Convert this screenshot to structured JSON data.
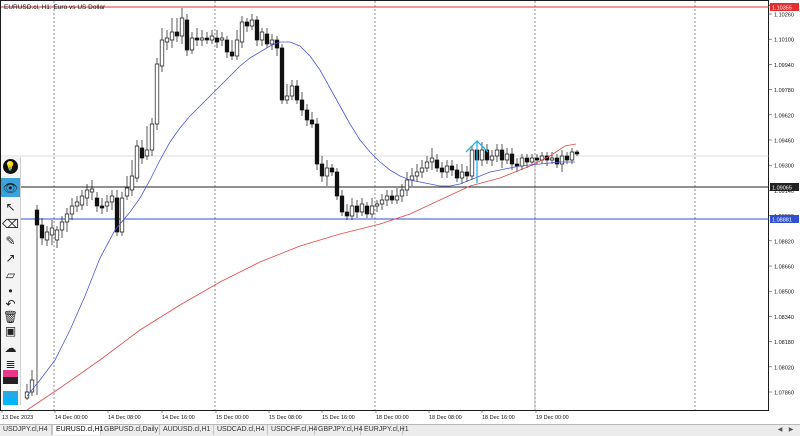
{
  "chart_header": {
    "symbol_line": "EURUSD.cl, H1:  Euro vs US Dollar"
  },
  "price_axis": {
    "labels": [
      "1.10260",
      "1.10100",
      "1.09940",
      "1.09780",
      "1.09620",
      "1.09460",
      "1.09300",
      "1.09140",
      "1.08980",
      "1.08820",
      "1.08660",
      "1.08500",
      "1.08340",
      "1.08180",
      "1.08020",
      "1.07860"
    ],
    "markers": [
      {
        "name": "top-line-marker",
        "text": "1.10355",
        "color": "#e03030"
      },
      {
        "name": "bid-price-marker",
        "text": "1.09065",
        "color": "#222222"
      },
      {
        "name": "blue-line-marker",
        "text": "1.08881",
        "color": "#3050d0"
      }
    ]
  },
  "time_axis": {
    "labels": [
      "13 Dec 2023",
      "14 Dec 00:00",
      "14 Dec 08:00",
      "14 Dec 16:00",
      "15 Dec 00:00",
      "15 Dec 08:00",
      "15 Dec 16:00",
      "18 Dec 00:00",
      "18 Dec 08:00",
      "18 Dec 16:00",
      "19 Dec 00:00"
    ]
  },
  "chart_data": {
    "type": "candlestick",
    "ylim": [
      1.0778,
      1.1038
    ],
    "horizontal_lines": [
      {
        "name": "resistance-line",
        "price": 1.10355,
        "color": "#e03030"
      },
      {
        "name": "bid-line",
        "price": 1.09065,
        "color": "#222222"
      },
      {
        "name": "support-line",
        "price": 1.08881,
        "color": "#3050d0"
      }
    ],
    "indicators": [
      {
        "name": "fast-ma",
        "color": "#4a58d8"
      },
      {
        "name": "slow-ma",
        "color": "#e04848"
      }
    ]
  },
  "toolbar": {
    "tools": [
      {
        "name": "lightbulb-icon",
        "glyph": "💡"
      },
      {
        "name": "eye-icon",
        "glyph": "👁"
      },
      {
        "name": "cursor-icon",
        "glyph": "↖"
      },
      {
        "name": "eraser-icon",
        "glyph": "⌫"
      },
      {
        "name": "pencil-icon",
        "glyph": "✎"
      },
      {
        "name": "arrow-line-icon",
        "glyph": "↗"
      },
      {
        "name": "ruler-icon",
        "glyph": "▱"
      },
      {
        "name": "dot-icon",
        "glyph": "•"
      },
      {
        "name": "undo-icon",
        "glyph": "↶"
      },
      {
        "name": "trash-icon",
        "glyph": "🗑"
      },
      {
        "name": "bus-icon",
        "glyph": "▣"
      },
      {
        "name": "cloud-icon",
        "glyph": "☁"
      },
      {
        "name": "notes-icon",
        "glyph": "≣"
      }
    ],
    "palette": [
      "#e8388a",
      "#222222",
      "#ffffff",
      "#2aa8e0",
      "#00b4ff"
    ]
  },
  "tabs": {
    "items": [
      {
        "label": "USDJPY.cl,H4",
        "active": false
      },
      {
        "label": "EURUSD.cl,H1",
        "active": true
      },
      {
        "label": "GBPUSD.cl,Daily",
        "active": false
      },
      {
        "label": "AUDUSD.cl,H1",
        "active": false
      },
      {
        "label": "USDCAD.cl,H4",
        "active": false
      },
      {
        "label": "USDCHF.cl,H4",
        "active": false
      },
      {
        "label": "GBPJPY.cl,H4",
        "active": false
      },
      {
        "label": "EURJPY.cl,H1",
        "active": false
      }
    ]
  }
}
